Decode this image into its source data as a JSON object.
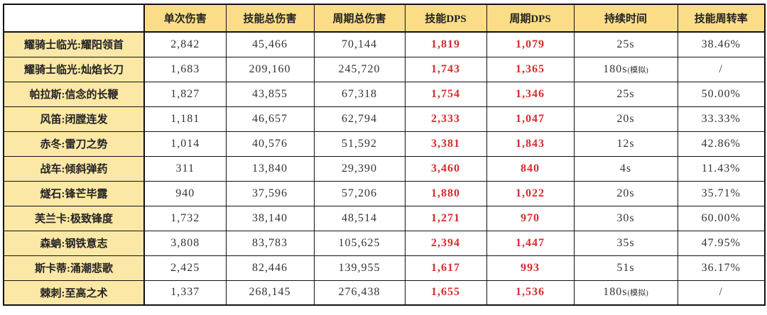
{
  "colors": {
    "header_bg": "#fbdd88",
    "row_label_bg": "#fce8a6",
    "red_text": "#d92b2b",
    "body_text": "#333333",
    "border": "#111111"
  },
  "chart_data": {
    "type": "table",
    "columns": [
      {
        "key": "single_damage",
        "label": "单次伤害",
        "style": "normal"
      },
      {
        "key": "skill_total_damage",
        "label": "技能总伤害",
        "style": "normal"
      },
      {
        "key": "cycle_total_damage",
        "label": "周期总伤害",
        "style": "normal"
      },
      {
        "key": "skill_dps",
        "label": "技能DPS",
        "style": "red"
      },
      {
        "key": "cycle_dps",
        "label": "周期DPS",
        "style": "red"
      },
      {
        "key": "duration",
        "label": "持续时间",
        "style": "duration"
      },
      {
        "key": "turnover",
        "label": "技能周转率",
        "style": "normal"
      }
    ],
    "rows": [
      {
        "label": "耀骑士临光:耀阳领首",
        "single_damage": "2,842",
        "skill_total_damage": "45,466",
        "cycle_total_damage": "70,144",
        "skill_dps": "1,819",
        "cycle_dps": "1,079",
        "duration": "25s",
        "duration_note": "",
        "turnover": "38.46%"
      },
      {
        "label": "耀骑士临光:灿焰长刀",
        "single_damage": "1,683",
        "skill_total_damage": "209,160",
        "cycle_total_damage": "245,720",
        "skill_dps": "1,743",
        "cycle_dps": "1,365",
        "duration": "180s",
        "duration_note": "(模拟)",
        "turnover": "/"
      },
      {
        "label": "帕拉斯:信念的长鞭",
        "single_damage": "1,827",
        "skill_total_damage": "43,855",
        "cycle_total_damage": "67,318",
        "skill_dps": "1,754",
        "cycle_dps": "1,346",
        "duration": "25s",
        "duration_note": "",
        "turnover": "50.00%"
      },
      {
        "label": "风笛:闭膛连发",
        "single_damage": "1,181",
        "skill_total_damage": "46,657",
        "cycle_total_damage": "62,794",
        "skill_dps": "2,333",
        "cycle_dps": "1,047",
        "duration": "20s",
        "duration_note": "",
        "turnover": "33.33%"
      },
      {
        "label": "赤冬:雷刀之势",
        "single_damage": "1,014",
        "skill_total_damage": "40,576",
        "cycle_total_damage": "51,592",
        "skill_dps": "3,381",
        "cycle_dps": "1,843",
        "duration": "12s",
        "duration_note": "",
        "turnover": "42.86%"
      },
      {
        "label": "战车:倾斜弹药",
        "single_damage": "311",
        "skill_total_damage": "13,840",
        "cycle_total_damage": "29,390",
        "skill_dps": "3,460",
        "cycle_dps": "840",
        "duration": "4s",
        "duration_note": "",
        "turnover": "11.43%"
      },
      {
        "label": "燧石:锋芒毕露",
        "single_damage": "940",
        "skill_total_damage": "37,596",
        "cycle_total_damage": "57,206",
        "skill_dps": "1,880",
        "cycle_dps": "1,022",
        "duration": "20s",
        "duration_note": "",
        "turnover": "35.71%"
      },
      {
        "label": "芙兰卡:极致锋度",
        "single_damage": "1,732",
        "skill_total_damage": "38,140",
        "cycle_total_damage": "48,514",
        "skill_dps": "1,271",
        "cycle_dps": "970",
        "duration": "30s",
        "duration_note": "",
        "turnover": "60.00%"
      },
      {
        "label": "森蚺:钢铁意志",
        "single_damage": "3,808",
        "skill_total_damage": "83,783",
        "cycle_total_damage": "105,625",
        "skill_dps": "2,394",
        "cycle_dps": "1,447",
        "duration": "35s",
        "duration_note": "",
        "turnover": "47.95%"
      },
      {
        "label": "斯卡蒂:涌潮悲歌",
        "single_damage": "2,425",
        "skill_total_damage": "82,446",
        "cycle_total_damage": "139,955",
        "skill_dps": "1,617",
        "cycle_dps": "993",
        "duration": "51s",
        "duration_note": "",
        "turnover": "36.17%"
      },
      {
        "label": "棘刺:至高之术",
        "single_damage": "1,337",
        "skill_total_damage": "268,145",
        "cycle_total_damage": "276,438",
        "skill_dps": "1,655",
        "cycle_dps": "1,536",
        "duration": "180s",
        "duration_note": "(模拟)",
        "turnover": "/"
      }
    ]
  }
}
